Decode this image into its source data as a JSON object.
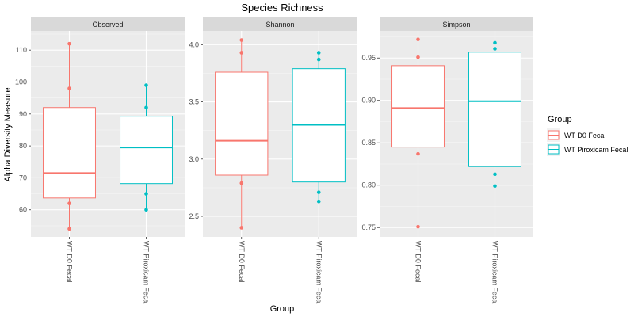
{
  "chart_data": {
    "type": "box",
    "title": "Species Richness",
    "xlabel": "Group",
    "ylabel": "Alpha Diversity Measure",
    "legend": {
      "title": "Group",
      "position": "right",
      "entries": [
        {
          "name": "WT D0 Fecal",
          "color": "#F8766D"
        },
        {
          "name": "WT Piroxicam Fecal",
          "color": "#00BFC4"
        }
      ]
    },
    "categories": [
      "WT D0 Fecal",
      "WT Piroxicam Fecal"
    ],
    "facets": [
      {
        "name": "Observed",
        "ylim": [
          51.5,
          116
        ],
        "yticks": [
          60,
          70,
          80,
          90,
          100,
          110
        ],
        "tick_labels": [
          "60",
          "70",
          "80",
          "90",
          "100",
          "110"
        ],
        "boxes": [
          {
            "group": "WT D0 Fecal",
            "q1": 63.7,
            "median": 71.5,
            "q3": 92,
            "whisker_low": 54,
            "whisker_high": 112,
            "points": [
              112,
              98,
              62,
              54
            ]
          },
          {
            "group": "WT Piroxicam Fecal",
            "q1": 68.2,
            "median": 79.5,
            "q3": 89.3,
            "whisker_low": 60,
            "whisker_high": 99,
            "points": [
              99,
              92,
              65,
              60
            ]
          }
        ]
      },
      {
        "name": "Shannon",
        "ylim": [
          2.32,
          4.12
        ],
        "yticks": [
          2.5,
          3.0,
          3.5,
          4.0
        ],
        "tick_labels": [
          "2.5",
          "3.0",
          "3.5",
          "4.0"
        ],
        "boxes": [
          {
            "group": "WT D0 Fecal",
            "q1": 2.86,
            "median": 3.16,
            "q3": 3.76,
            "whisker_low": 2.4,
            "whisker_high": 4.04,
            "points": [
              4.04,
              3.93,
              2.79,
              2.4
            ]
          },
          {
            "group": "WT Piroxicam Fecal",
            "q1": 2.8,
            "median": 3.3,
            "q3": 3.79,
            "whisker_low": 2.63,
            "whisker_high": 3.93,
            "points": [
              3.93,
              3.87,
              2.71,
              2.63
            ]
          }
        ]
      },
      {
        "name": "Simpson",
        "ylim": [
          0.739,
          0.982
        ],
        "yticks": [
          0.75,
          0.8,
          0.85,
          0.9,
          0.95
        ],
        "tick_labels": [
          "0.75",
          "0.80",
          "0.85",
          "0.90",
          "0.95"
        ],
        "boxes": [
          {
            "group": "WT D0 Fecal",
            "q1": 0.845,
            "median": 0.891,
            "q3": 0.941,
            "whisker_low": 0.751,
            "whisker_high": 0.972,
            "points": [
              0.972,
              0.951,
              0.837,
              0.751
            ]
          },
          {
            "group": "WT Piroxicam Fecal",
            "q1": 0.822,
            "median": 0.899,
            "q3": 0.957,
            "whisker_low": 0.799,
            "whisker_high": 0.968,
            "points": [
              0.968,
              0.961,
              0.813,
              0.799
            ]
          }
        ]
      }
    ]
  }
}
